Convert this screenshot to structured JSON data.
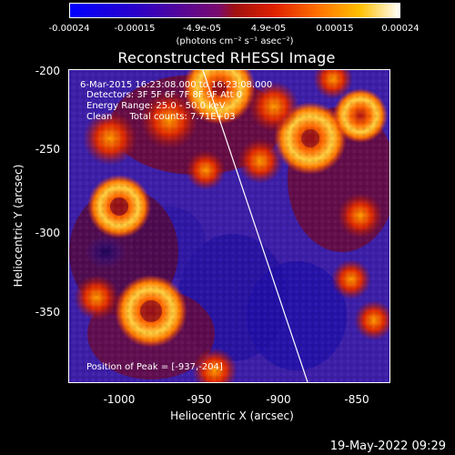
{
  "colorbar": {
    "ticks": [
      "-0.00024",
      "-0.00015",
      "-4.9e-05",
      "4.9e-05",
      "0.00015",
      "0.00024"
    ],
    "unit": "(photons cm⁻² s⁻¹ asec⁻²)"
  },
  "title": "Reconstructed RHESSI Image",
  "info": {
    "line1": "6-Mar-2015 16:23:08.000 to 16:23:08.000",
    "line2": "Detectors: 3F 5F 6F 7F 8F 9F Att 0",
    "line3": "Energy Range: 25.0 - 50.0 keV",
    "line4": "Clean      Total counts: 7.71E+03",
    "peak": "Position of Peak = [-937,-204]"
  },
  "axes": {
    "xlabel": "Heliocentric X (arcsec)",
    "ylabel": "Heliocentric Y (arcsec)",
    "xticks": [
      "-1000",
      "-950",
      "-900",
      "-850"
    ],
    "yticks": [
      "-200",
      "-250",
      "-300",
      "-350"
    ]
  },
  "timestamp": "19-May-2022 09:29"
}
